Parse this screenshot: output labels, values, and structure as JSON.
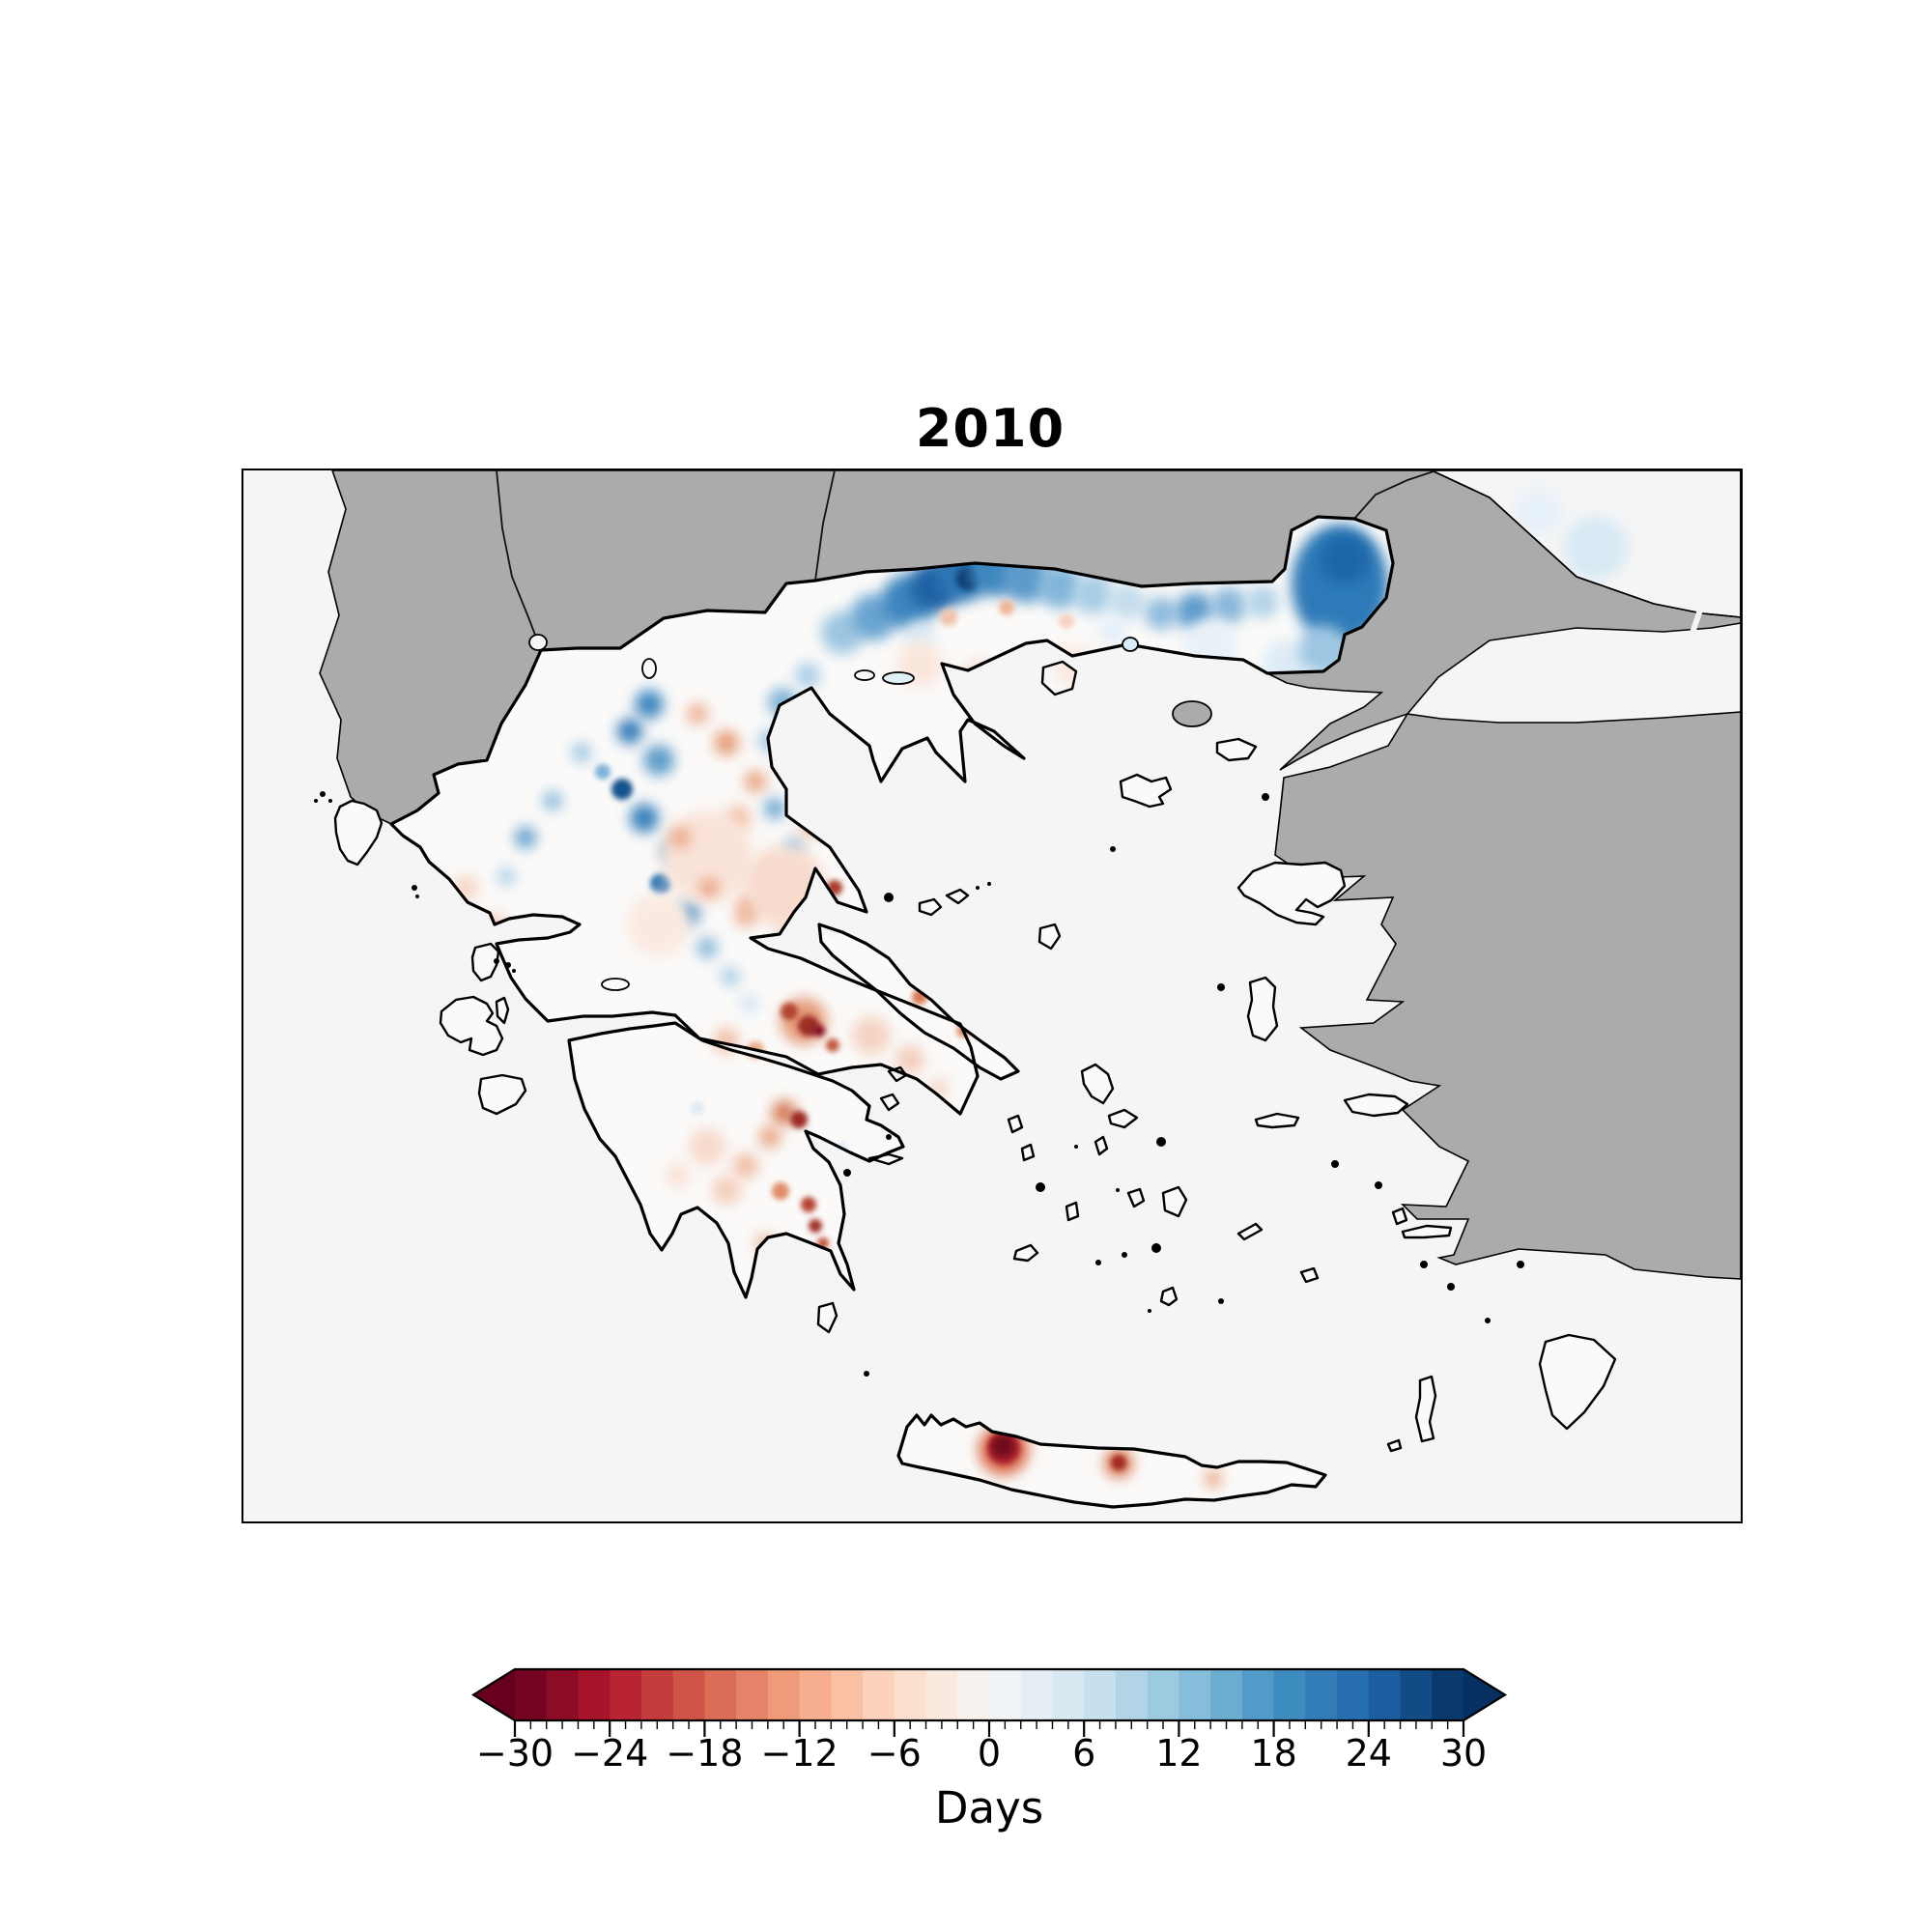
{
  "figure": {
    "title": "2010",
    "kind": "gridded anomaly map over Greece"
  },
  "map": {
    "sea_color": "#f5f5f5",
    "nodata_land_color": "#ababab",
    "data_fill_color": "#fbfaf9",
    "coastline_color": "#000000",
    "lake_fill_color": "#dff0f7"
  },
  "colorbar": {
    "label": "Days",
    "vmin": -30,
    "vmax": 30,
    "segment_step": 2,
    "extend": "both",
    "colormap": "RdBu",
    "major_ticks": [
      -30,
      -24,
      -18,
      -12,
      -6,
      0,
      6,
      12,
      18,
      24,
      30
    ],
    "major_tick_labels": [
      "−30",
      "−24",
      "−18",
      "−12",
      "−6",
      "0",
      "6",
      "12",
      "18",
      "24",
      "30"
    ],
    "minor_tick_step": 1,
    "color_stops": [
      [
        0.0,
        "#67001f"
      ],
      [
        0.1,
        "#b2182b"
      ],
      [
        0.2,
        "#d6604d"
      ],
      [
        0.3,
        "#f4a582"
      ],
      [
        0.4,
        "#fddbc7"
      ],
      [
        0.5,
        "#f7f7f7"
      ],
      [
        0.6,
        "#d1e5f0"
      ],
      [
        0.7,
        "#92c5de"
      ],
      [
        0.8,
        "#4393c3"
      ],
      [
        0.9,
        "#2166ac"
      ],
      [
        1.0,
        "#053061"
      ]
    ]
  },
  "anomalies": {
    "units": "days",
    "summary": [
      "strong positive (blue) band up to ~+30 along the Greece–North Macedonia/Bulgaria border",
      "strong positive lobe in the Evros region (northeast corner of Greece)",
      "mixed blue/red mottling over Epirus and western Macedonia",
      "weak to moderate negative (red) anomalies over Thessaly, Boeotia and Attica",
      "dark negative spots in central Greece and the eastern Peloponnese",
      "three negative hotspots on Crete, darkest (~−30) in the west",
      "faint positive tint over the far northeast sea corner (Black Sea)"
    ],
    "greece_blobs": [
      [
        620,
        168,
        22,
        "#9dc6e1",
        0,
        1
      ],
      [
        652,
        152,
        24,
        "#6aa5d1",
        0,
        1
      ],
      [
        688,
        136,
        28,
        "#3c86bf",
        0,
        1
      ],
      [
        716,
        120,
        26,
        "#1f62a4",
        0,
        1
      ],
      [
        744,
        108,
        28,
        "#2a74b3",
        0,
        1
      ],
      [
        750,
        112,
        12,
        "#0b3c70",
        0,
        0
      ],
      [
        778,
        104,
        26,
        "#3c86bf",
        0,
        1
      ],
      [
        810,
        112,
        25,
        "#5b9aca",
        0,
        1
      ],
      [
        845,
        120,
        23,
        "#82b6d9",
        0,
        1
      ],
      [
        880,
        128,
        21,
        "#a8cde5",
        0,
        1
      ],
      [
        915,
        136,
        19,
        "#c4dded",
        0,
        1
      ],
      [
        950,
        148,
        17,
        "#8fbcdc",
        0,
        1
      ],
      [
        985,
        146,
        20,
        "#5f9cca",
        0,
        1
      ],
      [
        1020,
        140,
        19,
        "#8ab8da",
        0,
        1
      ],
      [
        1055,
        136,
        17,
        "#b3d3e8",
        0,
        1
      ],
      [
        700,
        170,
        15,
        "#d8e9f4",
        0,
        1
      ],
      [
        900,
        166,
        14,
        "#e2eef7",
        0,
        1
      ],
      [
        1000,
        182,
        28,
        "#e8f1f8",
        0,
        1
      ],
      [
        1080,
        200,
        24,
        "#dcebf5",
        0,
        1
      ],
      [
        730,
        152,
        9,
        "#f2c3ab",
        0,
        0
      ],
      [
        790,
        142,
        8,
        "#eeb598",
        0,
        0
      ],
      [
        852,
        156,
        8,
        "#f5d2c0",
        0,
        0
      ],
      [
        1135,
        118,
        50,
        "#2e7ab8",
        62,
        1
      ],
      [
        1140,
        92,
        26,
        "#1d66a8",
        0,
        1
      ],
      [
        1118,
        186,
        26,
        "#9cc6e2",
        0,
        1
      ],
      [
        1104,
        224,
        16,
        "#cfe3f1",
        0,
        1
      ],
      [
        700,
        200,
        24,
        "#f9e6dc",
        0,
        1
      ],
      [
        762,
        216,
        20,
        "#f8e2d5",
        0,
        1
      ],
      [
        860,
        202,
        22,
        "#fae9e0",
        0,
        1
      ],
      [
        420,
        242,
        15,
        "#4187c0",
        0,
        1
      ],
      [
        400,
        270,
        13,
        "#2d77b4",
        0,
        1
      ],
      [
        430,
        300,
        16,
        "#5f9cca",
        0,
        1
      ],
      [
        392,
        330,
        11,
        "#16538e",
        0,
        0
      ],
      [
        415,
        360,
        15,
        "#3981bc",
        0,
        1
      ],
      [
        445,
        394,
        13,
        "#6fa9d3",
        0,
        1
      ],
      [
        432,
        428,
        11,
        "#2d74b0",
        0,
        0
      ],
      [
        460,
        458,
        13,
        "#5795c6",
        0,
        1
      ],
      [
        480,
        494,
        11,
        "#88b9db",
        0,
        1
      ],
      [
        504,
        524,
        10,
        "#aacfe6",
        0,
        1
      ],
      [
        524,
        552,
        9,
        "#cce2f0",
        0,
        1
      ],
      [
        558,
        240,
        15,
        "#7db3d7",
        0,
        1
      ],
      [
        584,
        212,
        13,
        "#a9cee6",
        0,
        1
      ],
      [
        545,
        280,
        11,
        "#97c2e0",
        0,
        1
      ],
      [
        574,
        310,
        10,
        "#bad8eb",
        0,
        1
      ],
      [
        550,
        350,
        11,
        "#6da8d2",
        0,
        1
      ],
      [
        570,
        390,
        10,
        "#90bedd",
        0,
        1
      ],
      [
        590,
        430,
        9,
        "#b5d5ea",
        0,
        1
      ],
      [
        610,
        468,
        8,
        "#d2e6f3",
        0,
        1
      ],
      [
        350,
        292,
        10,
        "#9cc6e2",
        0,
        1
      ],
      [
        372,
        312,
        8,
        "#7ab0d6",
        0,
        0
      ],
      [
        292,
        380,
        11,
        "#5f9cca",
        0,
        1
      ],
      [
        320,
        342,
        10,
        "#8abadc",
        0,
        1
      ],
      [
        272,
        420,
        9,
        "#a9cee6",
        0,
        1
      ],
      [
        470,
        252,
        11,
        "#eeb095",
        0,
        1
      ],
      [
        500,
        282,
        13,
        "#e69c77",
        0,
        1
      ],
      [
        530,
        322,
        11,
        "#e8a17d",
        0,
        1
      ],
      [
        512,
        360,
        13,
        "#f2c0a6",
        0,
        1
      ],
      [
        545,
        412,
        9,
        "#dd8059",
        0,
        0
      ],
      [
        522,
        450,
        11,
        "#eba98a",
        0,
        1
      ],
      [
        560,
        470,
        9,
        "#f4cdb9",
        0,
        1
      ],
      [
        482,
        422,
        7,
        "#c85f41",
        0,
        0
      ],
      [
        592,
        372,
        7,
        "#f6d7c7",
        0,
        1
      ],
      [
        230,
        432,
        13,
        "#f6d4c4",
        0,
        1
      ],
      [
        260,
        470,
        11,
        "#f3cab7",
        0,
        1
      ],
      [
        480,
        400,
        48,
        "#f9e3d8",
        0,
        1
      ],
      [
        560,
        430,
        42,
        "#f7dccd",
        0,
        1
      ],
      [
        430,
        470,
        33,
        "#fae9e0",
        0,
        1
      ],
      [
        585,
        370,
        10,
        "#f2c6b0",
        0,
        1
      ],
      [
        452,
        380,
        11,
        "#eba88a",
        0,
        1
      ],
      [
        482,
        432,
        9,
        "#e69873",
        0,
        1
      ],
      [
        520,
        462,
        11,
        "#efb79c",
        0,
        1
      ],
      [
        612,
        432,
        8,
        "#a83b2c",
        0,
        0
      ],
      [
        580,
        570,
        24,
        "#e49a77",
        0,
        1
      ],
      [
        565,
        560,
        9,
        "#b24530",
        0,
        0
      ],
      [
        585,
        575,
        11,
        "#9c2d25",
        0,
        0
      ],
      [
        596,
        580,
        6,
        "#7f1020",
        0,
        0
      ],
      [
        610,
        595,
        7,
        "#c25840",
        0,
        0
      ],
      [
        650,
        585,
        20,
        "#f5d3c2",
        0,
        1
      ],
      [
        690,
        610,
        15,
        "#f3cdbb",
        0,
        1
      ],
      [
        720,
        640,
        11,
        "#f6d8ca",
        0,
        1
      ],
      [
        700,
        545,
        8,
        "#d8764f",
        0,
        0
      ],
      [
        745,
        580,
        7,
        "#e08f68",
        0,
        0
      ],
      [
        500,
        590,
        13,
        "#f0bfa6",
        0,
        1
      ],
      [
        530,
        600,
        9,
        "#eaaa8a",
        0,
        0
      ],
      [
        560,
        665,
        13,
        "#d57952",
        0,
        1
      ],
      [
        575,
        672,
        9,
        "#9e2c24",
        0,
        0
      ],
      [
        545,
        690,
        11,
        "#e8a37f",
        0,
        1
      ],
      [
        520,
        720,
        13,
        "#f0bda4",
        0,
        1
      ],
      [
        556,
        746,
        9,
        "#df8a64",
        0,
        0
      ],
      [
        585,
        760,
        8,
        "#b5422f",
        0,
        0
      ],
      [
        592,
        782,
        7,
        "#a03327",
        0,
        0
      ],
      [
        600,
        800,
        6,
        "#c24f38",
        0,
        0
      ],
      [
        480,
        700,
        19,
        "#f7d9ca",
        0,
        1
      ],
      [
        500,
        745,
        15,
        "#f4cdbc",
        0,
        1
      ],
      [
        540,
        800,
        11,
        "#f0c2ae",
        0,
        1
      ],
      [
        450,
        730,
        13,
        "#f9e2d7",
        0,
        1
      ],
      [
        470,
        660,
        7,
        "#ddeaf4",
        0,
        0
      ],
      [
        620,
        700,
        6,
        "#e2eef7",
        0,
        0
      ],
      [
        787,
        1014,
        26,
        "#d96a4a",
        0,
        1
      ],
      [
        787,
        1012,
        17,
        "#a61c2b",
        0,
        0
      ],
      [
        786,
        1010,
        11,
        "#6f0a1e",
        0,
        0
      ],
      [
        906,
        1028,
        15,
        "#d97b58",
        0,
        1
      ],
      [
        906,
        1027,
        8,
        "#a22a23",
        0,
        0
      ],
      [
        1004,
        1044,
        9,
        "#eba683",
        0,
        1
      ]
    ],
    "sea_blobs": [
      [
        1400,
        80,
        33,
        "#d8e9f4",
        0,
        1
      ],
      [
        1340,
        42,
        24,
        "#e6f0f8",
        0,
        1
      ]
    ]
  }
}
